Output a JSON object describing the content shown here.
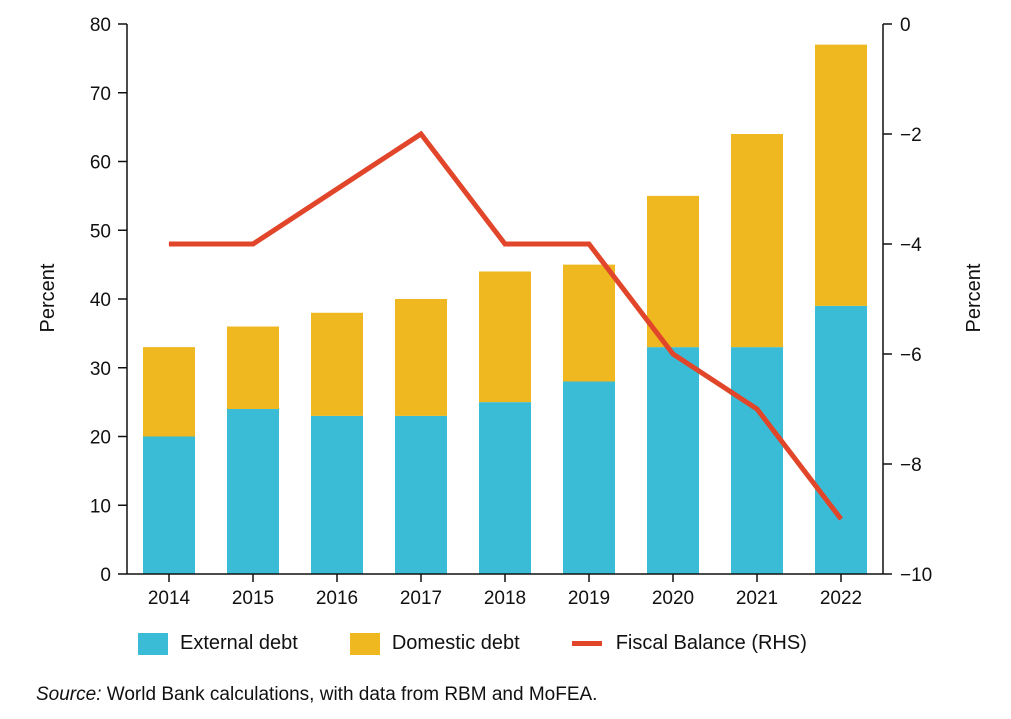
{
  "chart_data": {
    "type": "bar",
    "stacked": true,
    "categories": [
      "2014",
      "2015",
      "2016",
      "2017",
      "2018",
      "2019",
      "2020",
      "2021",
      "2022"
    ],
    "series": [
      {
        "name": "External debt",
        "kind": "bar",
        "axis": "left",
        "color": "#3bbcd6",
        "values": [
          20,
          24,
          23,
          23,
          25,
          28,
          33,
          33,
          39
        ]
      },
      {
        "name": "Domestic debt",
        "kind": "bar",
        "axis": "left",
        "color": "#efb820",
        "values": [
          13,
          12,
          15,
          17,
          19,
          17,
          22,
          31,
          38
        ]
      },
      {
        "name": "Fiscal Balance (RHS)",
        "kind": "line",
        "axis": "right",
        "color": "#e2462a",
        "values": [
          -4,
          -4,
          -3,
          -2,
          -4,
          -4,
          -6,
          -7,
          -9
        ]
      }
    ],
    "y_left": {
      "label": "Percent",
      "ylim": [
        0,
        80
      ],
      "ticks": [
        0,
        10,
        20,
        30,
        40,
        50,
        60,
        70,
        80
      ]
    },
    "y_right": {
      "label": "Percent",
      "ylim": [
        -10,
        0
      ],
      "ticks": [
        "0",
        "−2",
        "−4",
        "−6",
        "−8",
        "−10"
      ],
      "tick_values": [
        0,
        -2,
        -4,
        -6,
        -8,
        -10
      ]
    },
    "grid": false,
    "legend_position": "bottom"
  },
  "legend": {
    "external": "External debt",
    "domestic": "Domestic debt",
    "fiscal": "Fiscal Balance (RHS)"
  },
  "source": {
    "prefix": "Source:",
    "text": " World Bank calculations, with data from RBM and MoFEA."
  }
}
